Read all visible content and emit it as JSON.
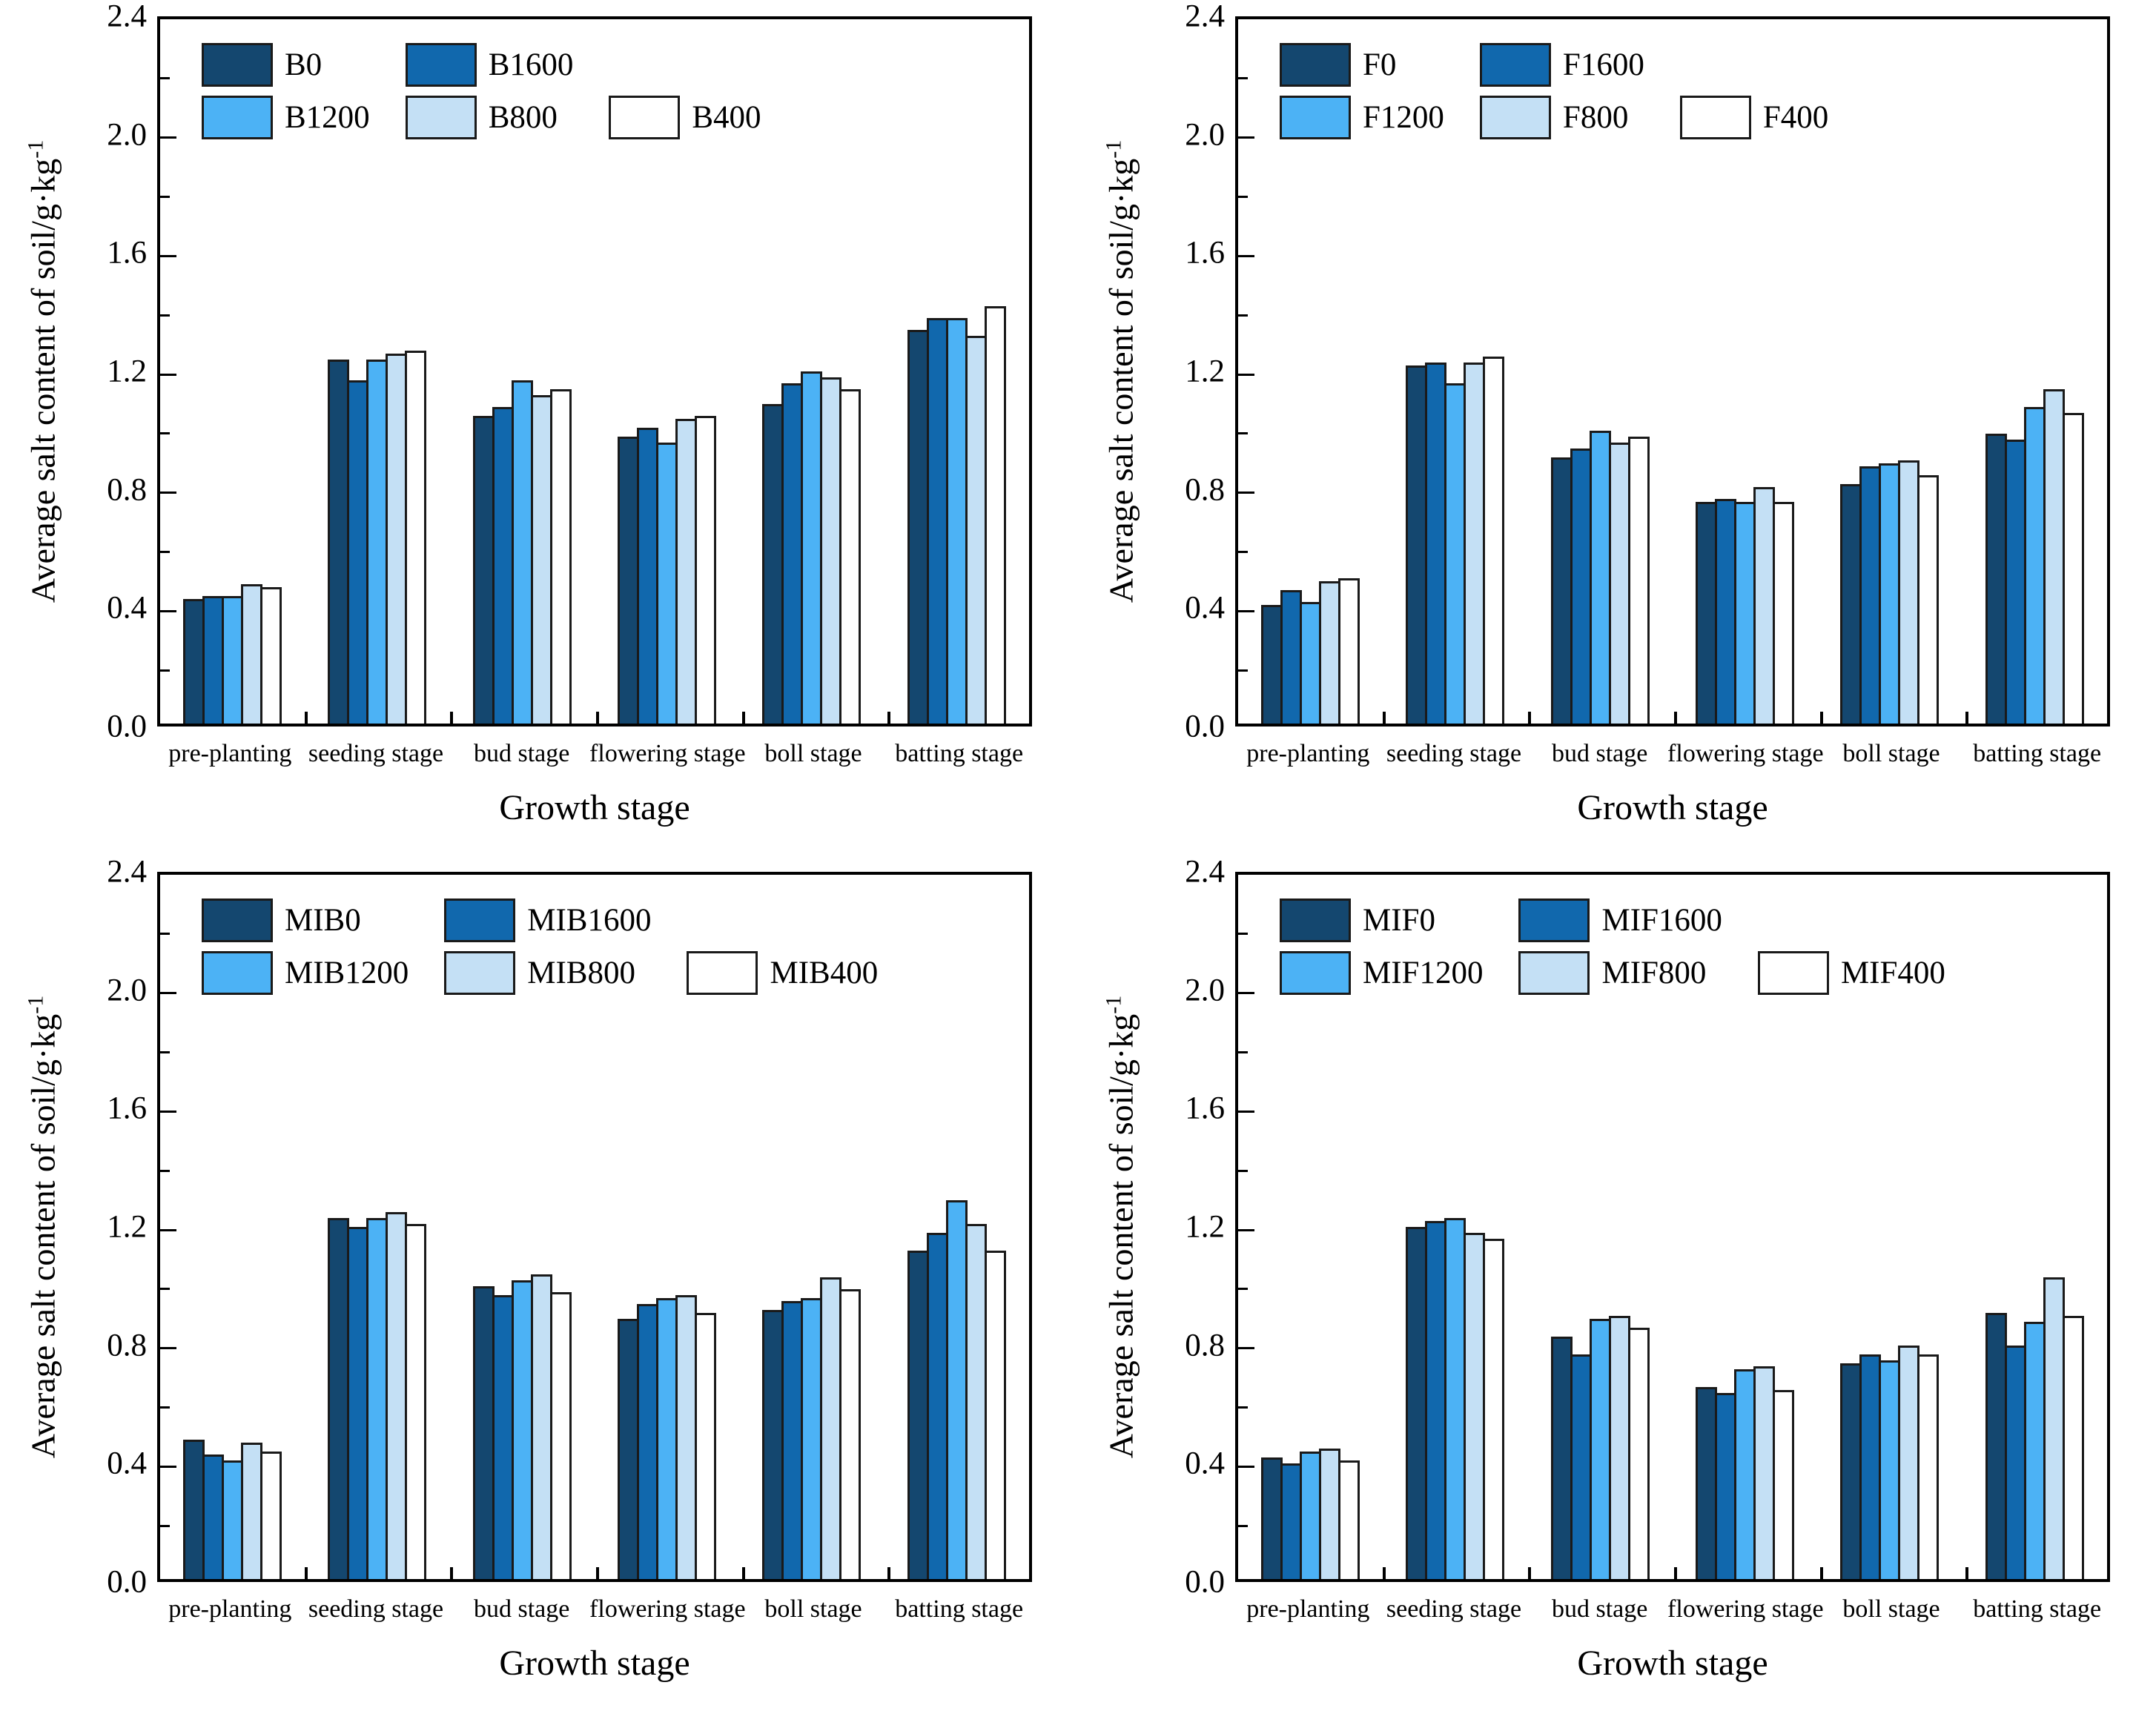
{
  "figure": {
    "background": "#ffffff",
    "panel_count": 4,
    "series_colors": [
      "#14476f",
      "#1168ad",
      "#4cb2f5",
      "#c4e0f5",
      "#ffffff"
    ],
    "bar_border_color": "#1a1a1a",
    "axis_color": "#000000"
  },
  "axis_common": {
    "xlabel": "Growth stage",
    "ylabel_main": "Average salt content of soil/g·kg",
    "ylabel_sup": "-1",
    "ylim": [
      0,
      2.4
    ],
    "ytick_values": [
      0.0,
      0.4,
      0.8,
      1.2,
      1.6,
      2.0,
      2.4
    ],
    "ytick_labels": [
      "0.0",
      "0.4",
      "0.8",
      "1.2",
      "1.6",
      "2.0",
      "2.4"
    ],
    "ytick_minor_values": [
      0.2,
      0.6,
      1.0,
      1.4,
      1.8,
      2.2
    ],
    "grid": false,
    "legend_position": "top-left-inside"
  },
  "chart_data": [
    {
      "type": "bar",
      "panel": "top-left",
      "categories": [
        "pre-planting",
        "seeding stage",
        "bud stage",
        "flowering stage",
        "boll stage",
        "batting stage"
      ],
      "xlabel": "Growth stage",
      "ylabel": "Average salt content of soil/g·kg⁻¹",
      "ylim": [
        0,
        2.4
      ],
      "series": [
        {
          "name": "B0",
          "color": "#14476f",
          "values": [
            0.42,
            1.23,
            1.04,
            0.97,
            1.08,
            1.33
          ]
        },
        {
          "name": "B1600",
          "color": "#1168ad",
          "values": [
            0.43,
            1.16,
            1.07,
            1.0,
            1.15,
            1.37
          ]
        },
        {
          "name": "B1200",
          "color": "#4cb2f5",
          "values": [
            0.43,
            1.23,
            1.16,
            0.95,
            1.19,
            1.37
          ]
        },
        {
          "name": "B800",
          "color": "#c4e0f5",
          "values": [
            0.47,
            1.25,
            1.11,
            1.03,
            1.17,
            1.31
          ]
        },
        {
          "name": "B400",
          "color": "#ffffff",
          "values": [
            0.46,
            1.26,
            1.13,
            1.04,
            1.13,
            1.41
          ]
        }
      ]
    },
    {
      "type": "bar",
      "panel": "top-right",
      "categories": [
        "pre-planting",
        "seeding stage",
        "bud stage",
        "flowering stage",
        "boll stage",
        "batting stage"
      ],
      "xlabel": "Growth stage",
      "ylabel": "Average salt content of soil/g·kg⁻¹",
      "ylim": [
        0,
        2.4
      ],
      "series": [
        {
          "name": "F0",
          "color": "#14476f",
          "values": [
            0.4,
            1.21,
            0.9,
            0.75,
            0.81,
            0.98
          ]
        },
        {
          "name": "F1600",
          "color": "#1168ad",
          "values": [
            0.45,
            1.22,
            0.93,
            0.76,
            0.87,
            0.96
          ]
        },
        {
          "name": "F1200",
          "color": "#4cb2f5",
          "values": [
            0.41,
            1.15,
            0.99,
            0.75,
            0.88,
            1.07
          ]
        },
        {
          "name": "F800",
          "color": "#c4e0f5",
          "values": [
            0.48,
            1.22,
            0.95,
            0.8,
            0.89,
            1.13
          ]
        },
        {
          "name": "F400",
          "color": "#ffffff",
          "values": [
            0.49,
            1.24,
            0.97,
            0.75,
            0.84,
            1.05
          ]
        }
      ]
    },
    {
      "type": "bar",
      "panel": "bottom-left",
      "categories": [
        "pre-planting",
        "seeding stage",
        "bud stage",
        "flowering stage",
        "boll stage",
        "batting stage"
      ],
      "xlabel": "Growth stage",
      "ylabel": "Average salt content of soil/g·kg⁻¹",
      "ylim": [
        0,
        2.4
      ],
      "series": [
        {
          "name": "MIB0",
          "color": "#14476f",
          "values": [
            0.47,
            1.22,
            0.99,
            0.88,
            0.91,
            1.11
          ]
        },
        {
          "name": "MIB1600",
          "color": "#1168ad",
          "values": [
            0.42,
            1.19,
            0.96,
            0.93,
            0.94,
            1.17
          ]
        },
        {
          "name": "MIB1200",
          "color": "#4cb2f5",
          "values": [
            0.4,
            1.22,
            1.01,
            0.95,
            0.95,
            1.28
          ]
        },
        {
          "name": "MIB800",
          "color": "#c4e0f5",
          "values": [
            0.46,
            1.24,
            1.03,
            0.96,
            1.02,
            1.2
          ]
        },
        {
          "name": "MIB400",
          "color": "#ffffff",
          "values": [
            0.43,
            1.2,
            0.97,
            0.9,
            0.98,
            1.11
          ]
        }
      ]
    },
    {
      "type": "bar",
      "panel": "bottom-right",
      "categories": [
        "pre-planting",
        "seeding stage",
        "bud stage",
        "flowering stage",
        "boll stage",
        "batting stage"
      ],
      "xlabel": "Growth stage",
      "ylabel": "Average salt content of soil/g·kg⁻¹",
      "ylim": [
        0,
        2.4
      ],
      "series": [
        {
          "name": "MIF0",
          "color": "#14476f",
          "values": [
            0.41,
            1.19,
            0.82,
            0.65,
            0.73,
            0.9
          ]
        },
        {
          "name": "MIF1600",
          "color": "#1168ad",
          "values": [
            0.39,
            1.21,
            0.76,
            0.63,
            0.76,
            0.79
          ]
        },
        {
          "name": "MIF1200",
          "color": "#4cb2f5",
          "values": [
            0.43,
            1.22,
            0.88,
            0.71,
            0.74,
            0.87
          ]
        },
        {
          "name": "MIF800",
          "color": "#c4e0f5",
          "values": [
            0.44,
            1.17,
            0.89,
            0.72,
            0.79,
            1.02
          ]
        },
        {
          "name": "MIF400",
          "color": "#ffffff",
          "values": [
            0.4,
            1.15,
            0.85,
            0.64,
            0.76,
            0.89
          ]
        }
      ]
    }
  ]
}
